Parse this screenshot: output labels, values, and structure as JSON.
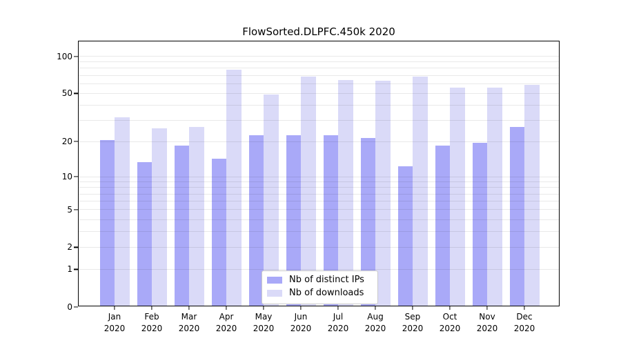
{
  "title": "FlowSorted.DLPFC.450k 2020",
  "chart_data": {
    "type": "bar",
    "title": "FlowSorted.DLPFC.450k 2020",
    "categories": [
      "Jan",
      "Feb",
      "Mar",
      "Apr",
      "May",
      "Jun",
      "Jul",
      "Aug",
      "Sep",
      "Oct",
      "Nov",
      "Dec"
    ],
    "year": "2020",
    "series": [
      {
        "name": "Nb of distinct IPs",
        "color": "#a9a9f8",
        "values": [
          20,
          13,
          18,
          14,
          22,
          22,
          22,
          21,
          12,
          18,
          19,
          26
        ]
      },
      {
        "name": "Nb of downloads",
        "color": "#dadaf8",
        "values": [
          31,
          25,
          26,
          76,
          48,
          67,
          63,
          62,
          67,
          54,
          54,
          57
        ]
      }
    ],
    "yscale": "log10(1+v)",
    "ylim": [
      0,
      132
    ],
    "ytick_values": [
      0,
      1,
      2,
      5,
      10,
      20,
      50,
      100
    ],
    "ytick_labels": [
      "0",
      "1",
      "2",
      "5",
      "10",
      "20",
      "50",
      "100"
    ],
    "gridline_values": [
      1,
      2,
      3,
      4,
      5,
      6,
      7,
      8,
      9,
      10,
      20,
      30,
      40,
      50,
      60,
      70,
      80,
      90,
      100
    ],
    "grid": true,
    "legend_position": "inside-bottom-center",
    "axis_color": "#000000",
    "gridline_color": "rgba(0,0,0,0.085)",
    "background_color": "#ffffff"
  }
}
